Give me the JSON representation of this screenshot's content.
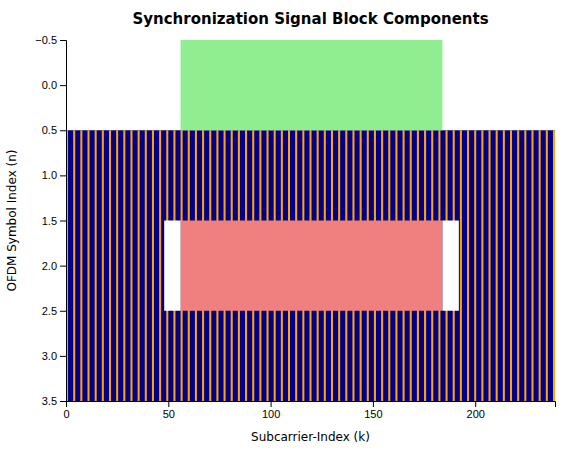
{
  "chart_data": {
    "type": "rectangles",
    "title": "Synchronization Signal Block Components",
    "xlabel": "Subcarrier-Index (k)",
    "ylabel": "OFDM Symbol Index (n)",
    "xlim": [
      0,
      239
    ],
    "ylim": [
      3.5,
      -0.5
    ],
    "xticks": [
      0,
      50,
      100,
      150,
      200
    ],
    "yticks": [
      {
        "value": -0.5,
        "label": "−0.5"
      },
      {
        "value": 0.0,
        "label": "0.0"
      },
      0.5,
      {
        "value": 1.0,
        "label": "1.0"
      },
      1.5,
      {
        "value": 2.0,
        "label": "2.0"
      },
      2.5,
      {
        "value": 3.0,
        "label": "3.0"
      },
      3.5
    ],
    "grid": false,
    "layers": [
      {
        "x": 0,
        "y": 0.5,
        "width": 239,
        "height": 3.0,
        "color": "#00008B"
      },
      {
        "x": [
          0,
          3.5,
          7,
          10.5,
          14,
          17.5,
          21,
          24.5,
          28,
          31.5,
          35,
          38.5,
          42,
          45.5,
          49,
          52.5,
          56,
          59.5,
          63,
          66.5,
          70,
          73.5,
          77,
          80.5,
          84,
          87.5,
          91,
          94.5,
          98,
          101.5,
          105,
          108.5,
          112,
          115.5,
          119,
          122.5,
          126,
          129.5,
          133,
          136.5,
          140,
          143.5,
          147,
          150.5,
          154,
          157.5,
          161,
          164.5,
          168,
          171.5,
          175,
          178.5,
          182,
          185.5,
          189,
          192.5,
          196,
          199.5,
          203,
          206.5,
          210,
          213.5,
          217,
          220.5,
          224,
          227.5,
          231,
          234.5,
          238
        ],
        "y": 0.5,
        "width": 1.0,
        "height": 3.0,
        "color": "#FFA500"
      },
      {
        "x": 56,
        "y": -0.5,
        "width": 128,
        "height": 1.0,
        "color": "#90EE90"
      },
      {
        "x": 56,
        "y": 1.5,
        "width": 128,
        "height": 1.0,
        "color": "#F08080"
      },
      {
        "x": 48,
        "y": 1.5,
        "width": 8,
        "height": 1.0,
        "color": "white"
      },
      {
        "x": 184,
        "y": 1.5,
        "width": 8,
        "height": 1.0,
        "color": "white"
      }
    ]
  }
}
